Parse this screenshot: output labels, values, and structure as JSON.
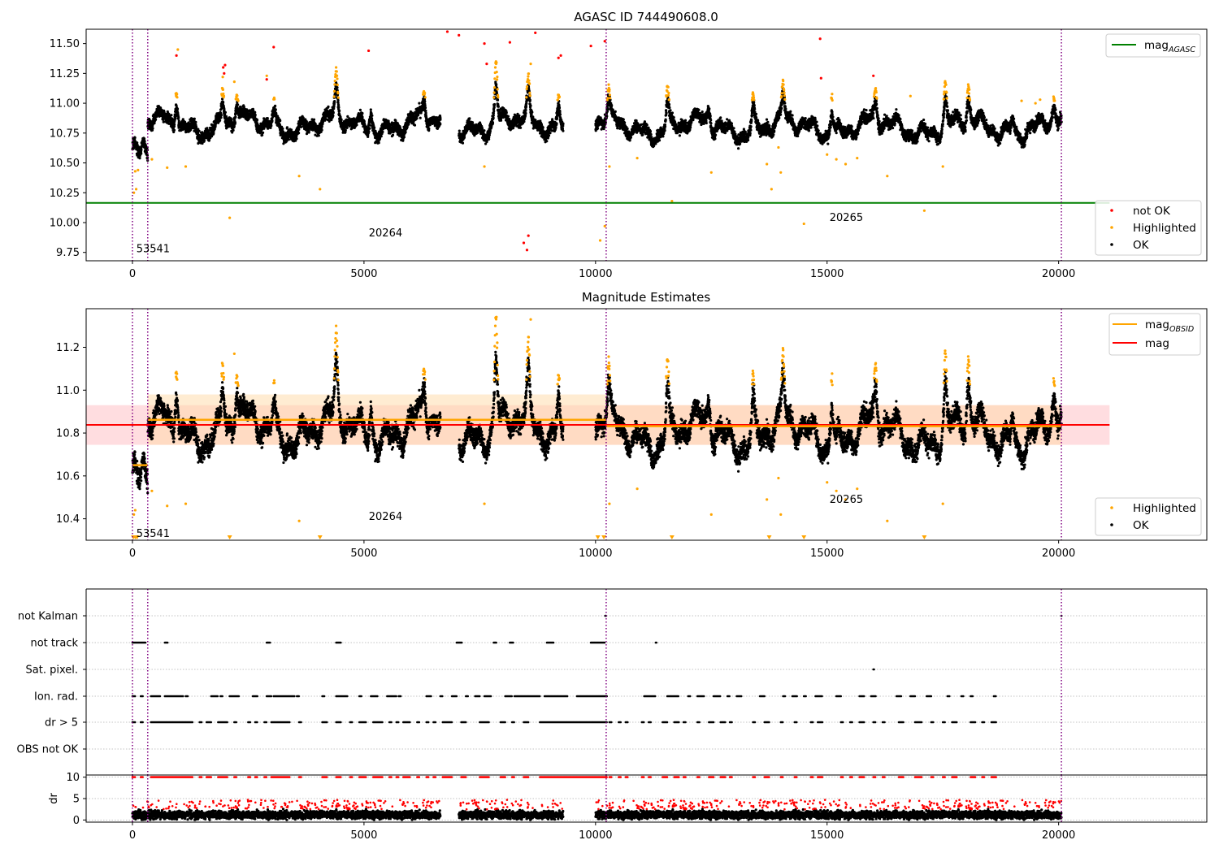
{
  "figure": {
    "x_axis": {
      "xlim": [
        -1000,
        23200
      ],
      "ticks": [
        0,
        5000,
        10000,
        15000,
        20000
      ],
      "tick_labels": [
        "0",
        "5000",
        "10000",
        "15000",
        "20000"
      ]
    },
    "obs_boundaries": [
      0,
      330,
      10230,
      20060
    ],
    "colors": {
      "ok": "#000000",
      "highlighted": "#ffa500",
      "not_ok": "#ff0000",
      "mag_agasc": "#008000",
      "mag_obsid": "#ffa500",
      "mag": "#ff0000",
      "vline": "#800080",
      "band_obs": "#ffd9a6",
      "band_mag": "#ffb3ba",
      "grid": "#b0b0b0"
    }
  },
  "chart_data": [
    {
      "id": "agasc",
      "type": "scatter",
      "title": "AGASC ID 744490608.0",
      "ylim": [
        9.68,
        11.62
      ],
      "yticks": [
        9.75,
        10.0,
        10.25,
        10.5,
        10.75,
        11.0,
        11.25,
        11.5
      ],
      "ytick_labels": [
        "9.75",
        "10.00",
        "10.25",
        "10.50",
        "10.75",
        "11.00",
        "11.25",
        "11.50"
      ],
      "mag_agasc": 10.165,
      "obs_labels": [
        {
          "text": "53541",
          "x": 130,
          "y": 9.78
        },
        {
          "text": "20264",
          "x": 5150,
          "y": 9.91
        },
        {
          "text": "20265",
          "x": 15100,
          "y": 10.04
        }
      ],
      "legend_top": [
        {
          "label": "mag",
          "sub": "AGASC",
          "color": "#008000"
        }
      ],
      "legend_bottom": [
        {
          "label": "not OK",
          "color": "#ff0000"
        },
        {
          "label": "Highlighted",
          "color": "#ffa500"
        },
        {
          "label": "OK",
          "color": "#000000"
        }
      ],
      "highlighted_points": [
        [
          30,
          10.25
        ],
        [
          60,
          10.43
        ],
        [
          80,
          10.28
        ],
        [
          120,
          10.44
        ],
        [
          420,
          10.53
        ],
        [
          750,
          10.46
        ],
        [
          980,
          11.45
        ],
        [
          1150,
          10.47
        ],
        [
          1950,
          11.22
        ],
        [
          2100,
          10.04
        ],
        [
          2200,
          11.18
        ],
        [
          2900,
          11.23
        ],
        [
          3600,
          10.39
        ],
        [
          4050,
          10.28
        ],
        [
          4400,
          11.23
        ],
        [
          7600,
          10.47
        ],
        [
          7850,
          11.35
        ],
        [
          8600,
          11.33
        ],
        [
          10100,
          9.85
        ],
        [
          10200,
          9.97
        ],
        [
          10300,
          10.47
        ],
        [
          10900,
          10.54
        ],
        [
          11550,
          11.1
        ],
        [
          11650,
          10.18
        ],
        [
          12500,
          10.42
        ],
        [
          13700,
          10.49
        ],
        [
          13800,
          10.28
        ],
        [
          13950,
          10.63
        ],
        [
          14000,
          10.42
        ],
        [
          14500,
          9.99
        ],
        [
          15000,
          10.57
        ],
        [
          15200,
          10.53
        ],
        [
          15400,
          10.49
        ],
        [
          15650,
          10.54
        ],
        [
          16300,
          10.39
        ],
        [
          16800,
          11.06
        ],
        [
          17100,
          10.1
        ],
        [
          17500,
          10.47
        ],
        [
          19200,
          11.02
        ],
        [
          19500,
          11.0
        ],
        [
          19600,
          11.03
        ],
        [
          19900,
          11.02
        ]
      ],
      "not_ok_points": [
        [
          950,
          11.4
        ],
        [
          1960,
          11.3
        ],
        [
          1980,
          11.25
        ],
        [
          2000,
          11.32
        ],
        [
          2900,
          11.2
        ],
        [
          3050,
          11.47
        ],
        [
          5100,
          11.44
        ],
        [
          6800,
          11.6
        ],
        [
          7050,
          11.57
        ],
        [
          7600,
          11.5
        ],
        [
          7650,
          11.33
        ],
        [
          8150,
          11.51
        ],
        [
          8450,
          9.83
        ],
        [
          8550,
          9.89
        ],
        [
          8520,
          9.77
        ],
        [
          8700,
          11.59
        ],
        [
          9200,
          11.38
        ],
        [
          9250,
          11.4
        ],
        [
          9900,
          11.48
        ],
        [
          10200,
          11.52
        ],
        [
          14850,
          11.54
        ],
        [
          14870,
          11.21
        ],
        [
          16000,
          11.23
        ]
      ]
    },
    {
      "id": "obsid",
      "type": "scatter",
      "title": "Magnitude Estimates",
      "ylim": [
        10.3,
        11.38
      ],
      "yticks": [
        10.4,
        10.6,
        10.8,
        11.0,
        11.2
      ],
      "ytick_labels": [
        "10.4",
        "10.6",
        "10.8",
        "11.0",
        "11.2"
      ],
      "mag": 10.838,
      "mag_band": [
        10.745,
        10.93
      ],
      "obs_mags": [
        {
          "x0": 0,
          "x1": 330,
          "mag": 10.65,
          "band": [
            10.635,
            10.665
          ]
        },
        {
          "x0": 330,
          "x1": 10230,
          "mag": 10.862,
          "band": [
            10.745,
            10.98
          ]
        },
        {
          "x0": 10230,
          "x1": 20060,
          "mag": 10.832,
          "band": [
            10.745,
            10.93
          ]
        }
      ],
      "obs_labels": [
        {
          "text": "53541",
          "x": 130,
          "y": 10.33
        },
        {
          "text": "20264",
          "x": 5150,
          "y": 10.41
        },
        {
          "text": "20265",
          "x": 15100,
          "y": 10.49
        }
      ],
      "legend_top": [
        {
          "label": "mag",
          "sub": "OBSID",
          "color": "#ffa500"
        },
        {
          "label": "mag",
          "sub": "",
          "color": "#ff0000"
        }
      ],
      "legend_bottom": [
        {
          "label": "Highlighted",
          "color": "#ffa500"
        },
        {
          "label": "OK",
          "color": "#000000"
        }
      ],
      "highlighted_points": [
        [
          30,
          10.42
        ],
        [
          60,
          10.44
        ],
        [
          420,
          10.53
        ],
        [
          750,
          10.46
        ],
        [
          1150,
          10.47
        ],
        [
          2200,
          11.17
        ],
        [
          3600,
          10.39
        ],
        [
          7600,
          10.47
        ],
        [
          8600,
          11.33
        ],
        [
          10300,
          10.47
        ],
        [
          10900,
          10.54
        ],
        [
          12500,
          10.42
        ],
        [
          13700,
          10.49
        ],
        [
          14000,
          10.42
        ],
        [
          13950,
          10.59
        ],
        [
          15000,
          10.57
        ],
        [
          15200,
          10.53
        ],
        [
          15400,
          10.49
        ],
        [
          15650,
          10.54
        ],
        [
          16300,
          10.39
        ],
        [
          17500,
          10.47
        ]
      ],
      "below_markers": [
        20,
        60,
        100,
        2100,
        4050,
        10050,
        10180,
        11650,
        13750,
        14500,
        17100
      ]
    },
    {
      "id": "flags",
      "type": "scatter",
      "rows": [
        "not Kalman",
        "not track",
        "Sat. pixel.",
        "Ion. rad.",
        "dr > 5",
        "OBS not OK"
      ],
      "not_kalman": [
        [
          10210,
          10230
        ],
        [
          20060,
          20070
        ]
      ],
      "not_track": [
        [
          0,
          280
        ],
        [
          700,
          760
        ],
        [
          2900,
          2980
        ],
        [
          4400,
          4500
        ],
        [
          7000,
          7120
        ],
        [
          7800,
          7860
        ],
        [
          8150,
          8220
        ],
        [
          8950,
          9100
        ],
        [
          9900,
          10200
        ],
        [
          11300,
          11320
        ]
      ],
      "sat_pixel": [
        [
          16000,
          16020
        ]
      ],
      "ion_rad": [
        [
          0,
          60
        ],
        [
          180,
          230
        ],
        [
          400,
          600
        ],
        [
          700,
          1100
        ],
        [
          1150,
          1200
        ],
        [
          1700,
          1850
        ],
        [
          1900,
          1950
        ],
        [
          2100,
          2300
        ],
        [
          2600,
          2700
        ],
        [
          2900,
          3000
        ],
        [
          3050,
          3500
        ],
        [
          3550,
          3600
        ],
        [
          4100,
          4150
        ],
        [
          4400,
          4650
        ],
        [
          4900,
          4950
        ],
        [
          5150,
          5300
        ],
        [
          5500,
          5700
        ],
        [
          5750,
          5800
        ],
        [
          6350,
          6450
        ],
        [
          6650,
          6700
        ],
        [
          6900,
          7000
        ],
        [
          7200,
          7250
        ],
        [
          7400,
          7500
        ],
        [
          7600,
          7750
        ],
        [
          8050,
          8200
        ],
        [
          8250,
          8800
        ],
        [
          8900,
          9400
        ],
        [
          9600,
          10250
        ],
        [
          11050,
          11300
        ],
        [
          11550,
          11800
        ],
        [
          12000,
          12050
        ],
        [
          12200,
          12350
        ],
        [
          12550,
          12700
        ],
        [
          12850,
          12900
        ],
        [
          13050,
          13150
        ],
        [
          13550,
          13650
        ],
        [
          14050,
          14100
        ],
        [
          14250,
          14350
        ],
        [
          14500,
          14550
        ],
        [
          14750,
          14900
        ],
        [
          15200,
          15300
        ],
        [
          15700,
          15800
        ],
        [
          15950,
          16050
        ],
        [
          16500,
          16600
        ],
        [
          16800,
          16900
        ],
        [
          17150,
          17250
        ],
        [
          17600,
          17650
        ],
        [
          17900,
          17950
        ],
        [
          18100,
          18150
        ],
        [
          18600,
          18650
        ]
      ],
      "dr_gt_5": [
        [
          0,
          60
        ],
        [
          180,
          230
        ],
        [
          400,
          1300
        ],
        [
          1450,
          1500
        ],
        [
          1600,
          1700
        ],
        [
          1850,
          2050
        ],
        [
          2200,
          2250
        ],
        [
          2500,
          2550
        ],
        [
          2650,
          2700
        ],
        [
          2850,
          2900
        ],
        [
          3000,
          3400
        ],
        [
          3600,
          3650
        ],
        [
          4100,
          4200
        ],
        [
          4400,
          4500
        ],
        [
          4700,
          4750
        ],
        [
          4900,
          5050
        ],
        [
          5200,
          5400
        ],
        [
          5550,
          5600
        ],
        [
          5700,
          5750
        ],
        [
          5850,
          6000
        ],
        [
          6150,
          6200
        ],
        [
          6350,
          6400
        ],
        [
          6500,
          6550
        ],
        [
          6700,
          6900
        ],
        [
          7100,
          7200
        ],
        [
          7500,
          7700
        ],
        [
          7950,
          8050
        ],
        [
          8200,
          8250
        ],
        [
          8450,
          8550
        ],
        [
          8800,
          10250
        ],
        [
          10300,
          10350
        ],
        [
          10500,
          10550
        ],
        [
          10650,
          10700
        ],
        [
          11000,
          11050
        ],
        [
          11150,
          11200
        ],
        [
          11450,
          11550
        ],
        [
          11700,
          11800
        ],
        [
          11900,
          11950
        ],
        [
          12200,
          12250
        ],
        [
          12450,
          12550
        ],
        [
          12700,
          12800
        ],
        [
          12900,
          12950
        ],
        [
          13400,
          13450
        ],
        [
          13650,
          13750
        ],
        [
          14000,
          14050
        ],
        [
          14300,
          14350
        ],
        [
          14650,
          14700
        ],
        [
          14800,
          14900
        ],
        [
          15300,
          15350
        ],
        [
          15500,
          15550
        ],
        [
          15700,
          15800
        ],
        [
          16000,
          16050
        ],
        [
          16200,
          16250
        ],
        [
          16550,
          16650
        ],
        [
          16900,
          17050
        ],
        [
          17250,
          17300
        ],
        [
          17500,
          17550
        ],
        [
          17700,
          17800
        ],
        [
          18100,
          18200
        ],
        [
          18350,
          18400
        ],
        [
          18550,
          18650
        ]
      ],
      "obs_not_ok": []
    },
    {
      "id": "dr",
      "type": "scatter",
      "ylabel": "dr",
      "ylim": [
        -0.5,
        10.5
      ],
      "yticks": [
        0,
        5,
        10
      ],
      "ytick_labels": [
        "0",
        "5",
        "10"
      ]
    }
  ]
}
